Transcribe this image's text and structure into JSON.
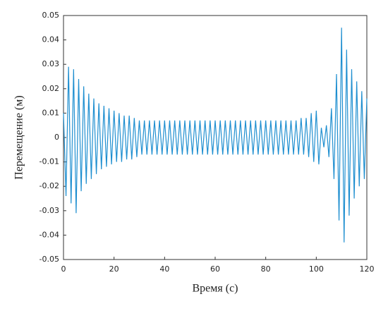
{
  "chart_data": {
    "type": "line",
    "x_label": "Время (с)",
    "y_label": "Перемещение (м)",
    "x": [
      0,
      1,
      2,
      3,
      4,
      5,
      6,
      7,
      8,
      9,
      10,
      11,
      12,
      13,
      14,
      15,
      16,
      17,
      18,
      19,
      20,
      21,
      22,
      23,
      24,
      25,
      26,
      27,
      28,
      29,
      30,
      31,
      32,
      33,
      34,
      35,
      36,
      37,
      38,
      39,
      40,
      41,
      42,
      43,
      44,
      45,
      46,
      47,
      48,
      49,
      50,
      51,
      52,
      53,
      54,
      55,
      56,
      57,
      58,
      59,
      60,
      61,
      62,
      63,
      64,
      65,
      66,
      67,
      68,
      69,
      70,
      71,
      72,
      73,
      74,
      75,
      76,
      77,
      78,
      79,
      80,
      81,
      82,
      83,
      84,
      85,
      86,
      87,
      88,
      89,
      90,
      91,
      92,
      93,
      94,
      95,
      96,
      97,
      98,
      99,
      100,
      101,
      102,
      103,
      104,
      105,
      106,
      107,
      108,
      109,
      110,
      111,
      112,
      113,
      114,
      115,
      116,
      117,
      118,
      119,
      120
    ],
    "values": [
      0.01,
      -0.024,
      0.029,
      -0.027,
      0.028,
      -0.031,
      0.024,
      -0.022,
      0.021,
      -0.019,
      0.018,
      -0.017,
      0.016,
      -0.015,
      0.014,
      -0.013,
      0.013,
      -0.012,
      0.012,
      -0.011,
      0.011,
      -0.01,
      0.01,
      -0.01,
      0.009,
      -0.009,
      0.009,
      -0.009,
      0.008,
      -0.008,
      0.007,
      -0.007,
      0.007,
      -0.007,
      0.007,
      -0.007,
      0.007,
      -0.007,
      0.007,
      -0.007,
      0.007,
      -0.007,
      0.007,
      -0.007,
      0.007,
      -0.007,
      0.007,
      -0.007,
      0.007,
      -0.007,
      0.007,
      -0.007,
      0.007,
      -0.007,
      0.007,
      -0.007,
      0.007,
      -0.007,
      0.007,
      -0.007,
      0.007,
      -0.007,
      0.007,
      -0.007,
      0.007,
      -0.007,
      0.007,
      -0.007,
      0.007,
      -0.007,
      0.007,
      -0.007,
      0.007,
      -0.007,
      0.007,
      -0.007,
      0.007,
      -0.007,
      0.007,
      -0.007,
      0.007,
      -0.007,
      0.007,
      -0.007,
      0.007,
      -0.007,
      0.007,
      -0.007,
      0.007,
      -0.007,
      0.007,
      -0.007,
      0.007,
      -0.007,
      0.008,
      -0.007,
      0.008,
      -0.008,
      0.01,
      -0.01,
      0.011,
      -0.011,
      0.004,
      -0.004,
      0.005,
      -0.008,
      0.012,
      -0.017,
      0.026,
      -0.034,
      0.045,
      -0.043,
      0.036,
      -0.032,
      0.028,
      -0.025,
      0.023,
      -0.02,
      0.019,
      -0.017,
      0.016
    ],
    "color": "#1f8fd0",
    "xlim": [
      0,
      120
    ],
    "xticks": [
      0,
      20,
      40,
      60,
      80,
      100,
      120
    ],
    "ylim": [
      -0.05,
      0.05
    ],
    "yticks": [
      -0.05,
      -0.04,
      -0.03,
      -0.02,
      -0.01,
      0,
      0.01,
      0.02,
      0.03,
      0.04,
      0.05
    ]
  }
}
